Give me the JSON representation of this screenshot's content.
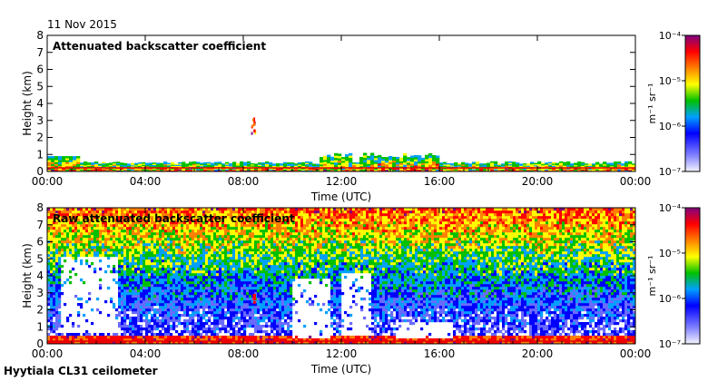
{
  "header": {
    "date": "11 Nov 2015"
  },
  "footer": {
    "site": "Hyytiala CL31 ceilometer"
  },
  "colors": {
    "scale": [
      "#ffffff",
      "#6a6aff",
      "#0000ff",
      "#00a0ff",
      "#00c000",
      "#ffff00",
      "#ff8000",
      "#ff0000",
      "#800080"
    ]
  },
  "chart_data": [
    {
      "type": "heatmap",
      "title": "Attenuated backscatter coefficient",
      "xlabel": "Time (UTC)",
      "ylabel": "Height (km)",
      "x_ticks": [
        "00:00",
        "04:00",
        "08:00",
        "12:00",
        "16:00",
        "20:00",
        "00:00"
      ],
      "y_ticks": [
        "0",
        "1",
        "2",
        "3",
        "4",
        "5",
        "6",
        "7",
        "8"
      ],
      "xlim_hours": [
        0,
        24
      ],
      "ylim_km": [
        0,
        8
      ],
      "colorbar": {
        "label": "m⁻¹ sr⁻¹",
        "ticks": [
          "10⁻⁷",
          "10⁻⁶",
          "10⁻⁵",
          "10⁻⁴"
        ],
        "scale": "log",
        "range": [
          1e-07,
          0.0001
        ]
      }
    },
    {
      "type": "heatmap",
      "title": "Raw attenuated backscatter coefficient",
      "xlabel": "Time (UTC)",
      "ylabel": "Height (km)",
      "x_ticks": [
        "00:00",
        "04:00",
        "08:00",
        "12:00",
        "16:00",
        "20:00",
        "00:00"
      ],
      "y_ticks": [
        "0",
        "1",
        "2",
        "3",
        "4",
        "5",
        "6",
        "7",
        "8"
      ],
      "xlim_hours": [
        0,
        24
      ],
      "ylim_km": [
        0,
        8
      ],
      "colorbar": {
        "label": "m⁻¹ sr⁻¹",
        "ticks": [
          "10⁻⁷",
          "10⁻⁶",
          "10⁻⁵",
          "10⁻⁴"
        ],
        "scale": "log",
        "range": [
          1e-07,
          0.0001
        ]
      }
    }
  ]
}
